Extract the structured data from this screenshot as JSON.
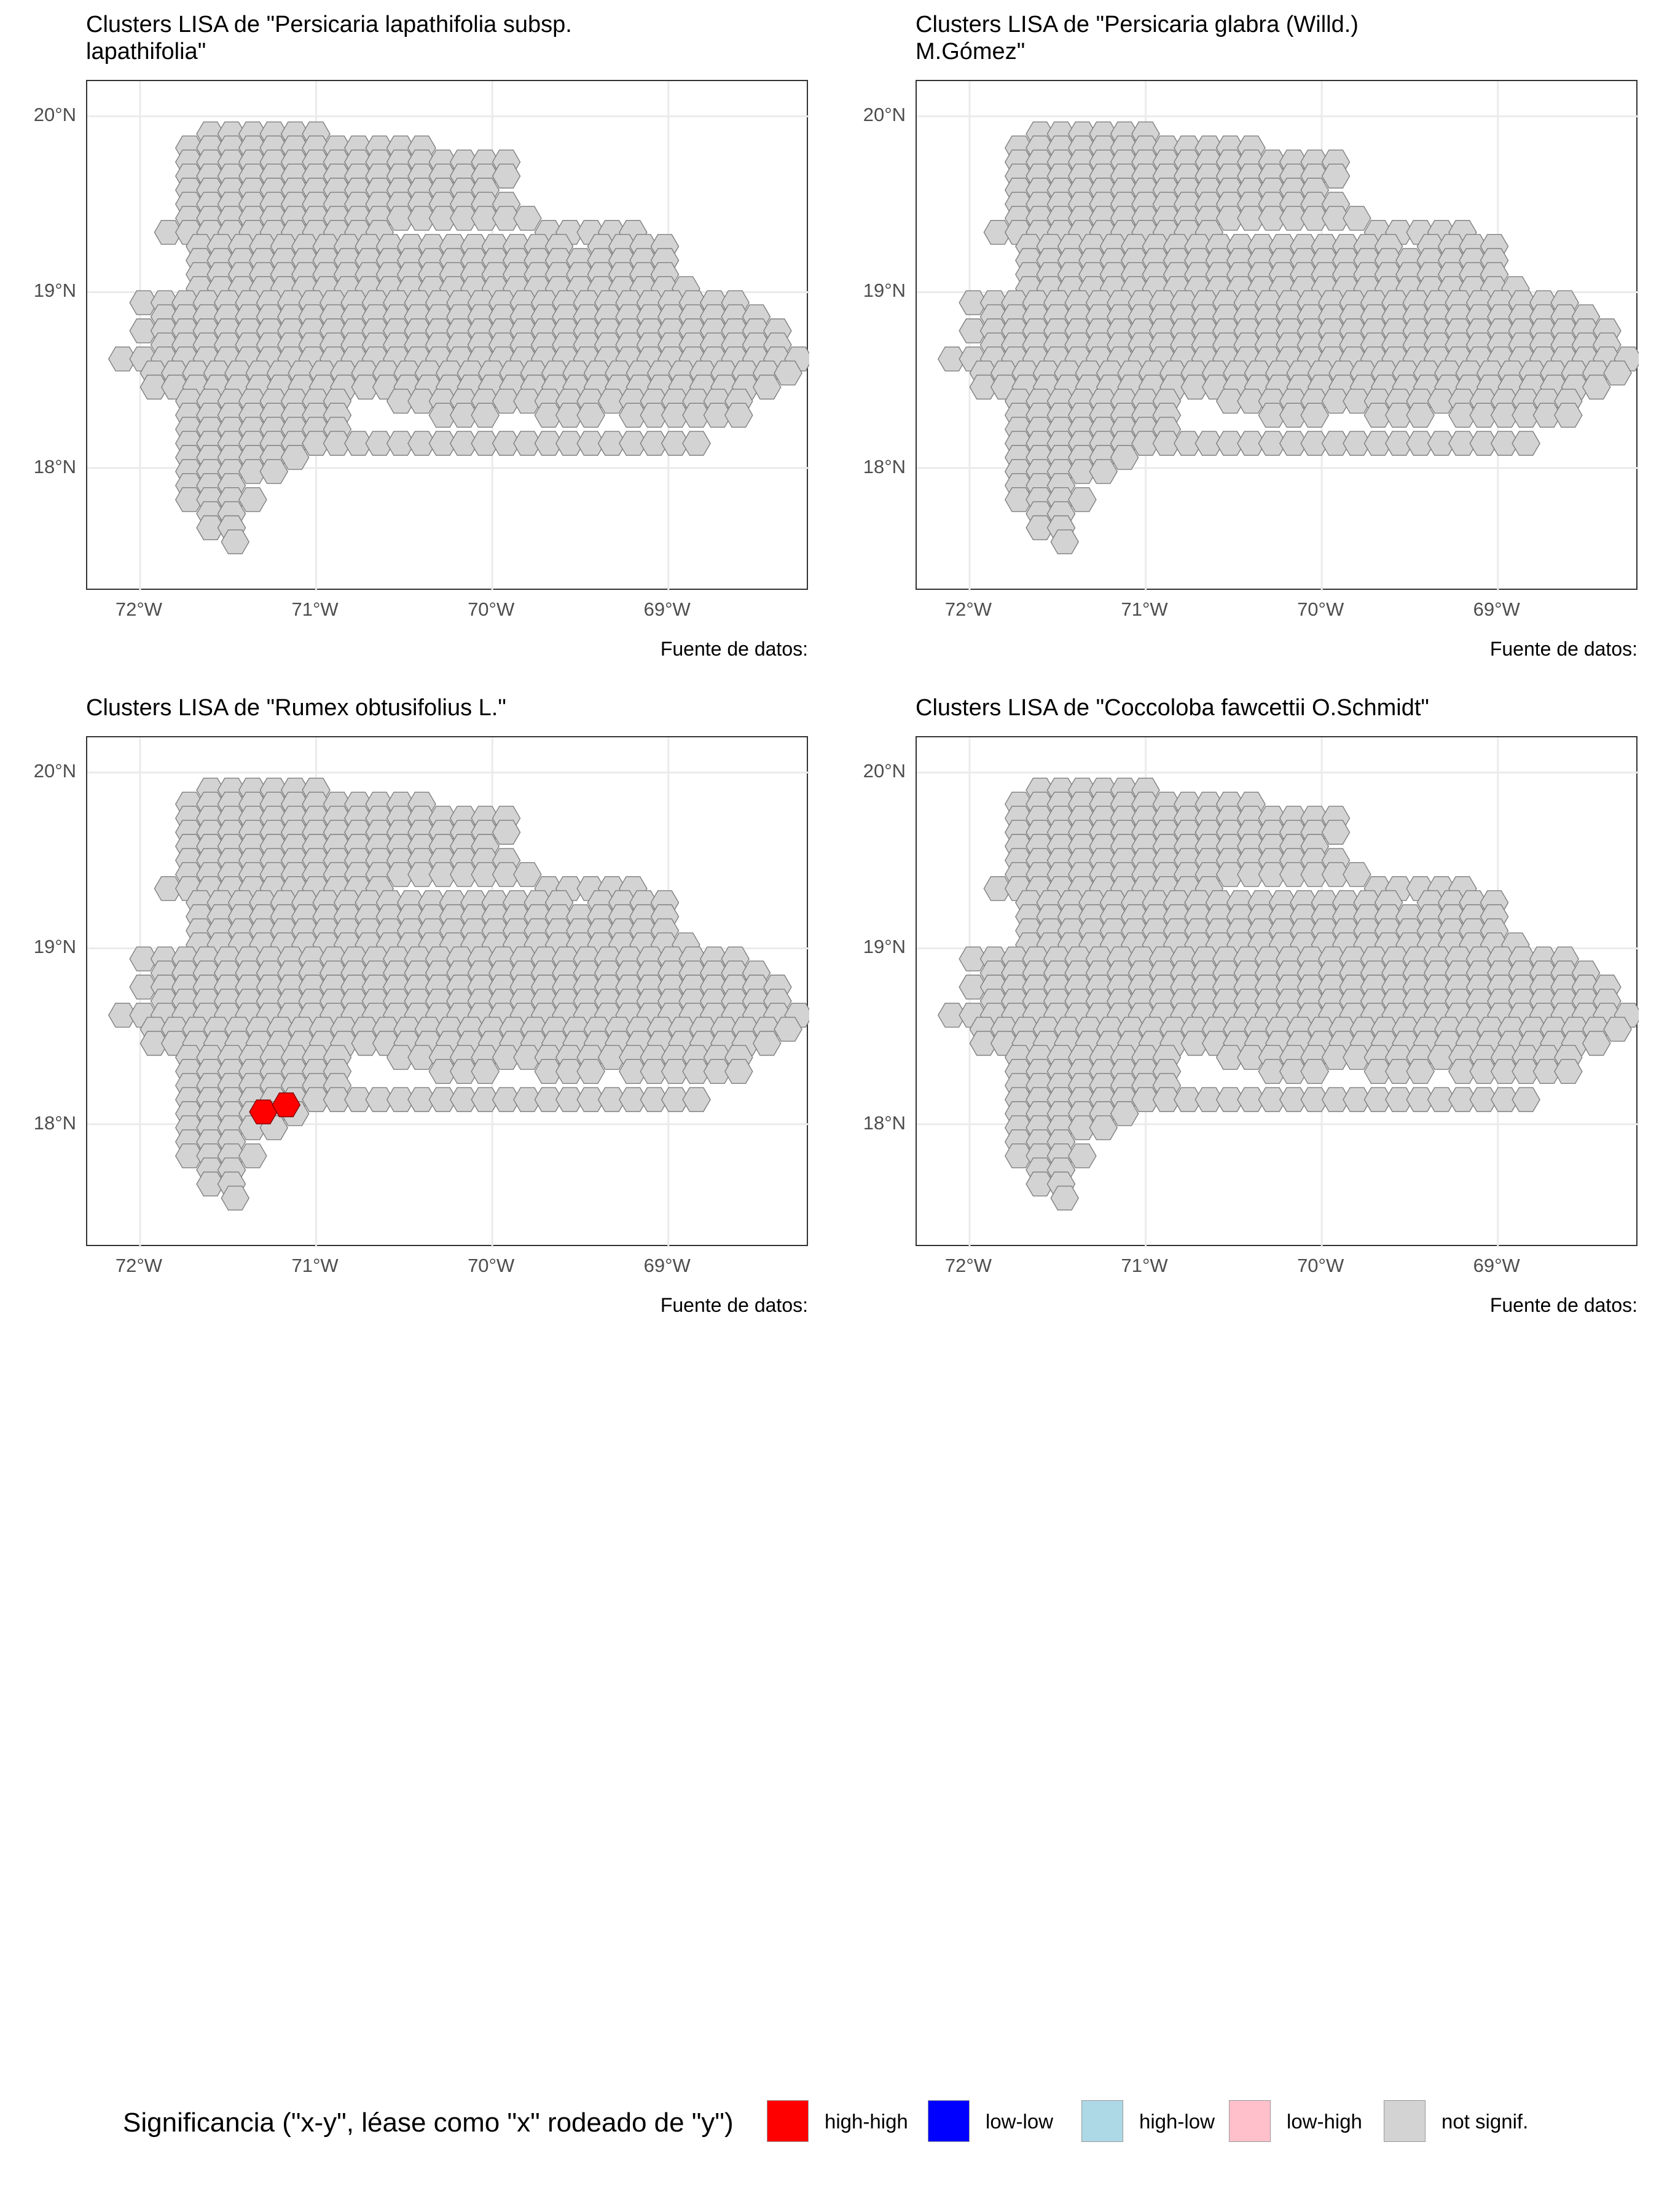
{
  "panels": [
    {
      "title": "Clusters LISA de \"Persicaria lapathifolia subsp.\nlapathifolia\"",
      "caption": "Fuente de datos:",
      "highlighted": []
    },
    {
      "title": "Clusters LISA de \"Persicaria glabra (Willd.)\nM.Gómez\"",
      "caption": "Fuente de datos:",
      "highlighted": []
    },
    {
      "title": "Clusters LISA de \"Rumex obtusifolius L.\"",
      "caption": "Fuente de datos:",
      "highlighted": [
        {
          "lon": -71.3,
          "lat": 18.07,
          "class": "high-high"
        },
        {
          "lon": -71.17,
          "lat": 18.11,
          "class": "high-high"
        }
      ]
    },
    {
      "title": "Clusters LISA de \"Coccoloba fawcettii O.Schmidt\"",
      "caption": "Fuente de datos:",
      "highlighted": []
    }
  ],
  "axes": {
    "x_ticks": [
      "72°W",
      "71°W",
      "70°W",
      "69°W"
    ],
    "x_values": [
      -72,
      -71,
      -70,
      -69
    ],
    "y_ticks": [
      "20°N",
      "19°N",
      "18°N"
    ],
    "y_values": [
      20,
      19,
      18
    ],
    "lon_range": [
      -72.3,
      -68.2
    ],
    "lat_range": [
      17.3,
      20.2
    ]
  },
  "legend": {
    "title": "Significancia (\"x-y\", léase como \"x\" rodeado de \"y\")",
    "items": [
      {
        "label": "high-high",
        "color": "#ff0000"
      },
      {
        "label": "low-low",
        "color": "#0000ff"
      },
      {
        "label": "high-low",
        "color": "#add8e6"
      },
      {
        "label": "low-high",
        "color": "#ffc0cb"
      },
      {
        "label": "not signif.",
        "color": "#d3d3d3"
      }
    ]
  },
  "colors": {
    "not_signif": "#d3d3d3",
    "hex_border": "#7f7f7f",
    "grid": "#ebebeb"
  }
}
